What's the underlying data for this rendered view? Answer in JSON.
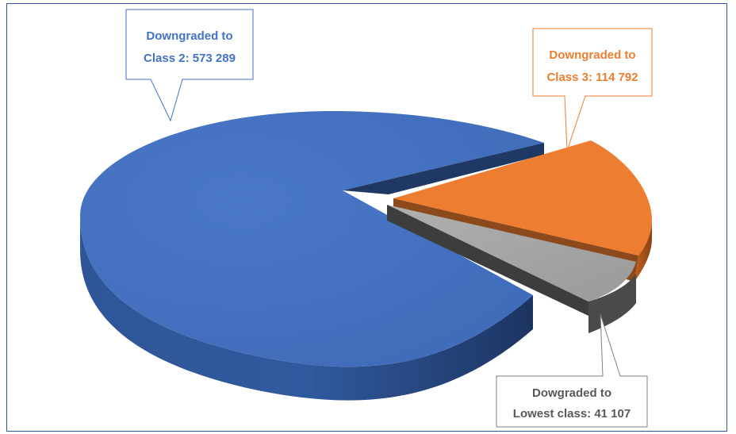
{
  "chart_data": {
    "type": "pie",
    "title": "",
    "slices": [
      {
        "category": "Downgraded to Class 2",
        "value": 573289,
        "color": "#4472c4",
        "label_lines": [
          "Downgraded to",
          "Class 2:  573 289"
        ],
        "label_color": "#4472c4"
      },
      {
        "category": "Downgraded to Class 3",
        "value": 114792,
        "color": "#ed7d31",
        "label_lines": [
          "Downgraded to",
          "Class 3: 114 792"
        ],
        "label_color": "#ed7d31"
      },
      {
        "category": "Dowgraded to Lowest class",
        "value": 41107,
        "color": "#a5a5a5",
        "label_lines": [
          "Dowgraded to",
          "Lowest class:  41 107"
        ],
        "label_color": "#595959"
      }
    ],
    "style": "3d-exploded"
  }
}
